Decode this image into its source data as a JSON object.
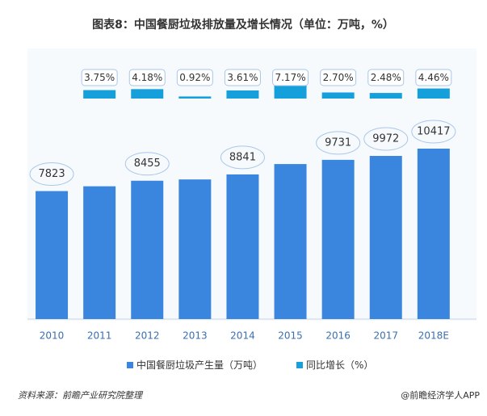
{
  "chart_data": {
    "type": "bar",
    "title": "图表8：中国餐厨垃圾排放量及增长情况（单位：万吨，%）",
    "categories": [
      "2010",
      "2011",
      "2012",
      "2013",
      "2014",
      "2015",
      "2016",
      "2017",
      "2018E"
    ],
    "series": [
      {
        "name": "中国餐厨垃圾产生量（万吨）",
        "color": "#3a86de",
        "values": [
          7823,
          8116,
          8455,
          8533,
          8841,
          9475,
          9731,
          9972,
          10417
        ],
        "value_labels": [
          "7823",
          null,
          "8455",
          null,
          "8841",
          null,
          "9731",
          "9972",
          "10417"
        ]
      },
      {
        "name": "同比增长（%）",
        "color": "#16a0db",
        "values": [
          null,
          3.75,
          4.18,
          0.92,
          3.61,
          7.17,
          2.7,
          2.48,
          4.46
        ],
        "value_labels": [
          null,
          "3.75%",
          "4.18%",
          "0.92%",
          "3.61%",
          "7.17%",
          "2.70%",
          "2.48%",
          "4.46%"
        ]
      }
    ],
    "legend": "bottom"
  },
  "footer": {
    "source": "资料来源：前瞻产业研究院整理",
    "credit": "@前瞻经济学人APP"
  }
}
